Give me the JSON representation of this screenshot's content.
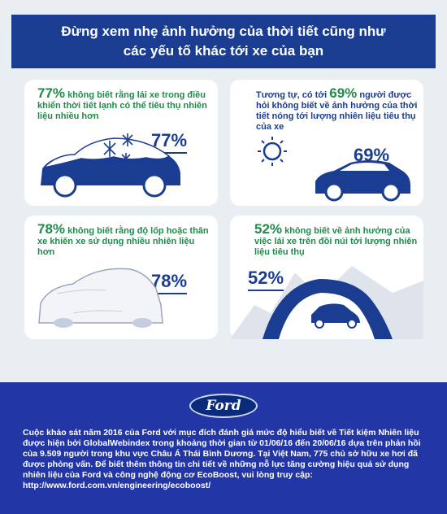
{
  "title": {
    "line1": "Đừng xem nhẹ ảnh hưởng của thời tiết cũng như",
    "line2": "các yếu tố khác tới xe của bạn"
  },
  "cards": [
    {
      "pct": "77%",
      "text": "không biết rằng lái xe trong điều khiển thời tiết lạnh có thể tiêu thụ nhiên liệu nhiều hơn",
      "big": "77%"
    },
    {
      "prefix": "Tương tự, có tới",
      "pct": "69%",
      "text": "người được hỏi không biết về ảnh hưởng của thời tiết nóng tới lượng nhiên liệu tiêu thụ của xe",
      "big": "69%"
    },
    {
      "pct": "78%",
      "text": "không biết rằng độ lốp hoặc thân xe khiến xe sử dụng nhiều nhiên liệu hơn",
      "big": "78%"
    },
    {
      "pct": "52%",
      "text": "không biết về ảnh hưởng của việc lái xe trên đồi núi tới lượng nhiên liệu tiêu thụ",
      "big": "52%"
    }
  ],
  "footer": {
    "logo": "Ford",
    "text": "Cuộc khảo sát năm 2016 của Ford với mục đích đánh giá mức độ hiểu biết về Tiết kiệm Nhiên liệu được hiện bởi GlobalWebindex trong khoảng thời gian từ 01/06/16 đến 20/06/16 dựa trên phản hồi của 9.509 người trong khu vực Châu Á Thái Bình Dương. Tại Việt Nam, 775 chủ sở hữu xe hơi đã được phỏng vấn. Để biết thêm thông tin chi tiết về những nỗ lực tăng cường hiệu quả sử dụng nhiên liệu của Ford và công nghệ động cơ EcoBoost, vui lòng truy cập: http://www.ford.com.vn/engineering/ecoboost/"
  },
  "colors": {
    "navy": "#1a3d92",
    "green": "#1f8a4a",
    "footer_blue": "#2236a6"
  }
}
